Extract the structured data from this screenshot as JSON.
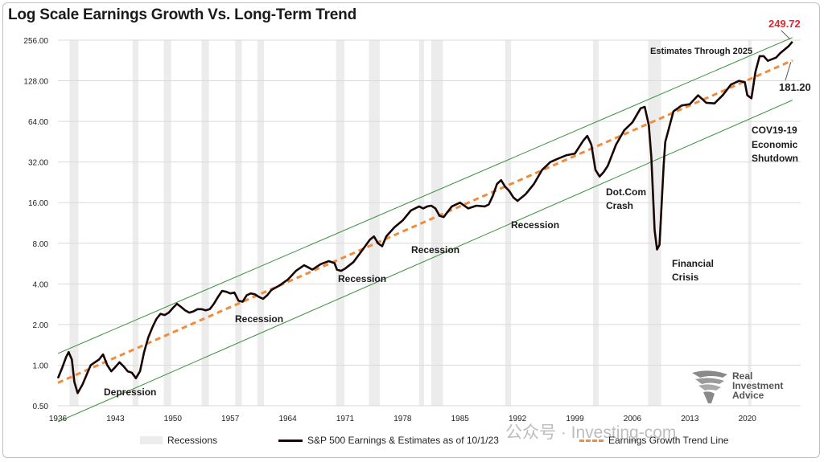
{
  "chart_data": {
    "type": "line",
    "title": "Log Scale Earnings Growth Vs. Long-Term Trend",
    "y_scale": "log2",
    "ylim": [
      0.5,
      256
    ],
    "xlim": [
      1936,
      2026.5
    ],
    "y_ticks": [
      "256.00",
      "128.00",
      "64.00",
      "32.00",
      "16.00",
      "8.00",
      "4.00",
      "2.00",
      "1.00",
      "0.50"
    ],
    "x_ticks": [
      "1936",
      "1943",
      "1950",
      "1957",
      "1964",
      "1971",
      "1978",
      "1985",
      "1992",
      "1999",
      "2006",
      "2013",
      "2020"
    ],
    "recessions": [
      [
        1937.4,
        1938.5
      ],
      [
        1945.1,
        1945.8
      ],
      [
        1948.9,
        1949.8
      ],
      [
        1953.5,
        1954.4
      ],
      [
        1957.6,
        1958.4
      ],
      [
        1960.3,
        1961.1
      ],
      [
        1969.9,
        1970.9
      ],
      [
        1973.9,
        1975.2
      ],
      [
        1980.0,
        1980.6
      ],
      [
        1981.5,
        1982.9
      ],
      [
        1990.5,
        1991.2
      ],
      [
        2001.2,
        2001.9
      ],
      [
        2007.9,
        2009.5
      ],
      [
        2020.1,
        2020.5
      ]
    ],
    "series": [
      {
        "name": "S&P 500 Earnings & Estimates as of 10/1/23",
        "color": "#1a0505",
        "points": [
          [
            1936.0,
            0.8
          ],
          [
            1936.5,
            0.95
          ],
          [
            1937.0,
            1.15
          ],
          [
            1937.3,
            1.25
          ],
          [
            1937.7,
            1.1
          ],
          [
            1938.0,
            0.75
          ],
          [
            1938.4,
            0.62
          ],
          [
            1939.0,
            0.72
          ],
          [
            1939.5,
            0.85
          ],
          [
            1940.0,
            1.0
          ],
          [
            1940.5,
            1.05
          ],
          [
            1941.0,
            1.1
          ],
          [
            1941.5,
            1.2
          ],
          [
            1942.0,
            1.0
          ],
          [
            1942.5,
            0.9
          ],
          [
            1943.0,
            0.97
          ],
          [
            1943.5,
            1.05
          ],
          [
            1944.0,
            0.98
          ],
          [
            1944.5,
            0.9
          ],
          [
            1945.0,
            0.88
          ],
          [
            1945.5,
            0.8
          ],
          [
            1946.0,
            0.9
          ],
          [
            1946.5,
            1.25
          ],
          [
            1947.0,
            1.6
          ],
          [
            1947.5,
            1.9
          ],
          [
            1948.0,
            2.2
          ],
          [
            1948.5,
            2.4
          ],
          [
            1949.0,
            2.35
          ],
          [
            1949.5,
            2.45
          ],
          [
            1950.0,
            2.65
          ],
          [
            1950.5,
            2.85
          ],
          [
            1951.0,
            2.7
          ],
          [
            1951.5,
            2.55
          ],
          [
            1952.0,
            2.45
          ],
          [
            1952.5,
            2.5
          ],
          [
            1953.0,
            2.6
          ],
          [
            1953.5,
            2.6
          ],
          [
            1954.0,
            2.55
          ],
          [
            1954.5,
            2.6
          ],
          [
            1955.0,
            2.85
          ],
          [
            1955.5,
            3.2
          ],
          [
            1956.0,
            3.55
          ],
          [
            1956.5,
            3.5
          ],
          [
            1957.0,
            3.4
          ],
          [
            1957.5,
            3.45
          ],
          [
            1958.0,
            3.0
          ],
          [
            1958.5,
            2.95
          ],
          [
            1959.0,
            3.3
          ],
          [
            1959.5,
            3.4
          ],
          [
            1960.0,
            3.35
          ],
          [
            1960.5,
            3.2
          ],
          [
            1961.0,
            3.1
          ],
          [
            1961.5,
            3.3
          ],
          [
            1962.0,
            3.6
          ],
          [
            1963.0,
            3.9
          ],
          [
            1964.0,
            4.3
          ],
          [
            1965.0,
            5.0
          ],
          [
            1966.0,
            5.5
          ],
          [
            1966.5,
            5.3
          ],
          [
            1967.0,
            5.1
          ],
          [
            1968.0,
            5.6
          ],
          [
            1969.0,
            5.9
          ],
          [
            1969.7,
            5.7
          ],
          [
            1970.0,
            5.1
          ],
          [
            1970.5,
            5.0
          ],
          [
            1971.0,
            5.2
          ],
          [
            1972.0,
            5.8
          ],
          [
            1973.0,
            7.0
          ],
          [
            1974.0,
            8.5
          ],
          [
            1974.5,
            9.0
          ],
          [
            1975.0,
            8.0
          ],
          [
            1975.5,
            7.6
          ],
          [
            1976.0,
            9.0
          ],
          [
            1977.0,
            10.5
          ],
          [
            1978.0,
            11.8
          ],
          [
            1979.0,
            14.0
          ],
          [
            1980.0,
            15.0
          ],
          [
            1980.5,
            14.5
          ],
          [
            1981.0,
            15.0
          ],
          [
            1981.5,
            15.2
          ],
          [
            1982.0,
            14.5
          ],
          [
            1982.5,
            12.8
          ],
          [
            1983.0,
            12.5
          ],
          [
            1984.0,
            15.0
          ],
          [
            1985.0,
            16.0
          ],
          [
            1986.0,
            14.5
          ],
          [
            1987.0,
            15.2
          ],
          [
            1988.0,
            15.0
          ],
          [
            1988.5,
            15.5
          ],
          [
            1989.0,
            18.0
          ],
          [
            1989.5,
            22.0
          ],
          [
            1990.0,
            23.5
          ],
          [
            1990.5,
            21.0
          ],
          [
            1991.0,
            19.5
          ],
          [
            1991.5,
            17.5
          ],
          [
            1992.0,
            16.5
          ],
          [
            1993.0,
            18.5
          ],
          [
            1994.0,
            22.0
          ],
          [
            1995.0,
            28.0
          ],
          [
            1996.0,
            32.0
          ],
          [
            1997.0,
            34.0
          ],
          [
            1998.0,
            36.0
          ],
          [
            1999.0,
            37.0
          ],
          [
            2000.0,
            46.0
          ],
          [
            2000.5,
            50.0
          ],
          [
            2001.0,
            43.0
          ],
          [
            2001.5,
            28.0
          ],
          [
            2002.0,
            25.0
          ],
          [
            2002.5,
            27.0
          ],
          [
            2003.0,
            30.0
          ],
          [
            2004.0,
            43.0
          ],
          [
            2005.0,
            55.0
          ],
          [
            2006.0,
            63.0
          ],
          [
            2007.0,
            80.0
          ],
          [
            2007.5,
            82.0
          ],
          [
            2008.0,
            60.0
          ],
          [
            2008.3,
            35.0
          ],
          [
            2008.7,
            10.0
          ],
          [
            2009.0,
            7.2
          ],
          [
            2009.3,
            7.8
          ],
          [
            2009.8,
            30.0
          ],
          [
            2010.0,
            45.0
          ],
          [
            2011.0,
            76.0
          ],
          [
            2012.0,
            84.0
          ],
          [
            2013.0,
            86.0
          ],
          [
            2014.0,
            100.0
          ],
          [
            2015.0,
            88.0
          ],
          [
            2016.0,
            87.0
          ],
          [
            2017.0,
            100.0
          ],
          [
            2018.0,
            120.0
          ],
          [
            2019.0,
            128.0
          ],
          [
            2019.7,
            125.0
          ],
          [
            2020.0,
            100.0
          ],
          [
            2020.5,
            95.0
          ],
          [
            2021.0,
            150.0
          ],
          [
            2021.5,
            195.0
          ],
          [
            2022.0,
            195.0
          ],
          [
            2022.5,
            180.0
          ],
          [
            2023.0,
            185.0
          ],
          [
            2023.5,
            190.0
          ],
          [
            2024.0,
            205.0
          ],
          [
            2025.0,
            230.0
          ],
          [
            2025.5,
            249.72
          ]
        ]
      },
      {
        "name": "Earnings Growth Trend Line",
        "color": "#f08c3c",
        "points": [
          [
            1936,
            0.74
          ],
          [
            2025.5,
            181.2
          ]
        ]
      }
    ],
    "channel_lines": {
      "color": "#3a8f3a",
      "upper": [
        [
          1936,
          1.22
        ],
        [
          2025.5,
          268
        ]
      ],
      "lower": [
        [
          1936,
          0.38
        ],
        [
          2025.5,
          92
        ]
      ]
    },
    "annotations": {
      "last_value": "249.72",
      "trend_value": "181.20",
      "estimates": "Estimates Through 2025",
      "depression": "Depression",
      "recession_1": "Recession",
      "recession_2": "Recession",
      "recession_3": "Recession",
      "recession_4": "Recession",
      "dotcom_1": "Dot.Com",
      "dotcom_2": "Crash",
      "financial_1": "Financial",
      "financial_2": "Crisis",
      "covid_1": "COV19-19",
      "covid_2": "Economic",
      "covid_3": "Shutdown"
    }
  },
  "legend": {
    "recessions": "Recessions",
    "earnings": "S&P 500 Earnings & Estimates as of 10/1/23",
    "trend": "Earnings Growth Trend Line"
  },
  "logo": {
    "line1": "Real",
    "line2": "Investment",
    "line3": "Advice"
  },
  "watermark": "公众号 · Investing-com"
}
